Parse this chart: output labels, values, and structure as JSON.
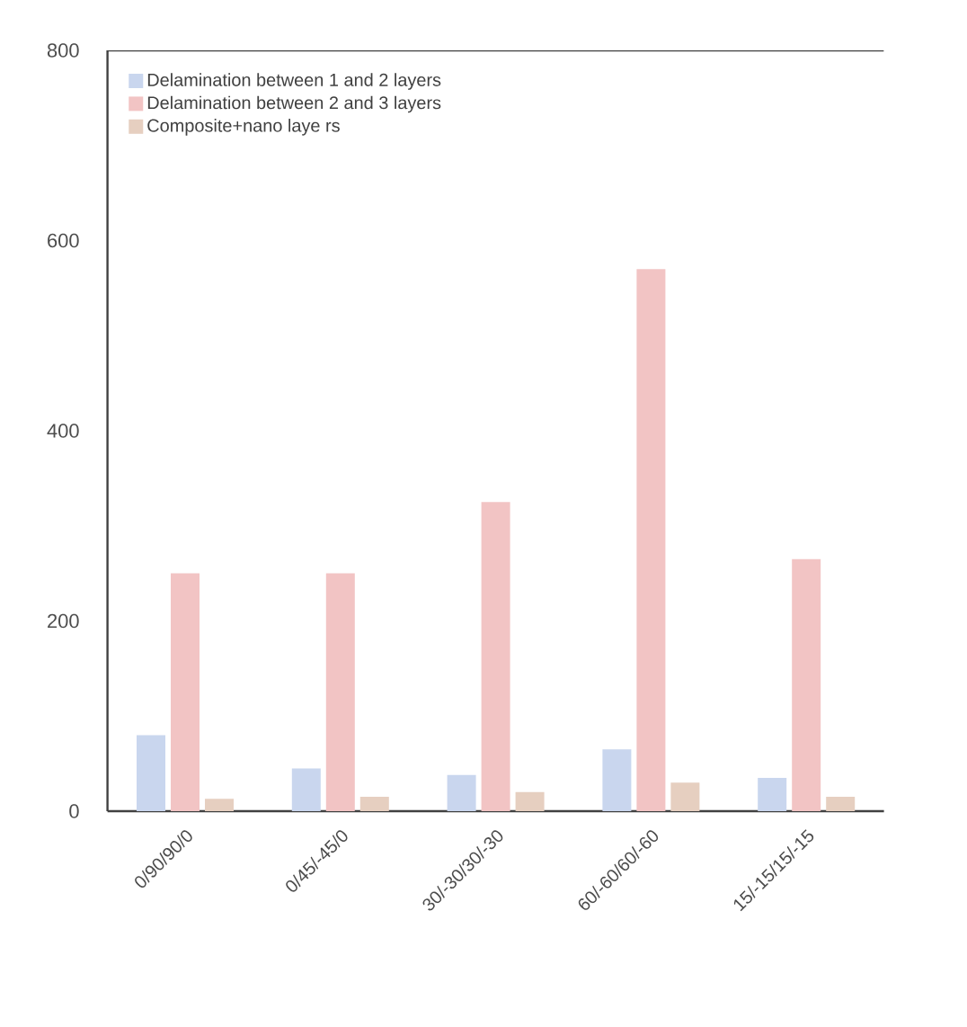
{
  "chart_data": {
    "type": "bar",
    "categories": [
      "0/90/90/0",
      "0/45/-45/0",
      "30/-30/30/-30",
      "60/-60/60/-60",
      "15/-15/15/-15"
    ],
    "series": [
      {
        "name": "Delamination between 1 and 2 layers",
        "color": "#c9d6ee",
        "values": [
          80,
          45,
          38,
          65,
          35
        ]
      },
      {
        "name": "Delamination between 2 and 3 layers",
        "color": "#f2c4c4",
        "values": [
          250,
          250,
          325,
          570,
          265
        ]
      },
      {
        "name": "Composite+nano  laye rs",
        "color": "#e6cfc0",
        "values": [
          13,
          15,
          20,
          30,
          15
        ]
      }
    ],
    "ylim": [
      0,
      800
    ],
    "yticks": [
      0,
      200,
      400,
      600,
      800
    ],
    "grid": false,
    "legend": "top left"
  }
}
